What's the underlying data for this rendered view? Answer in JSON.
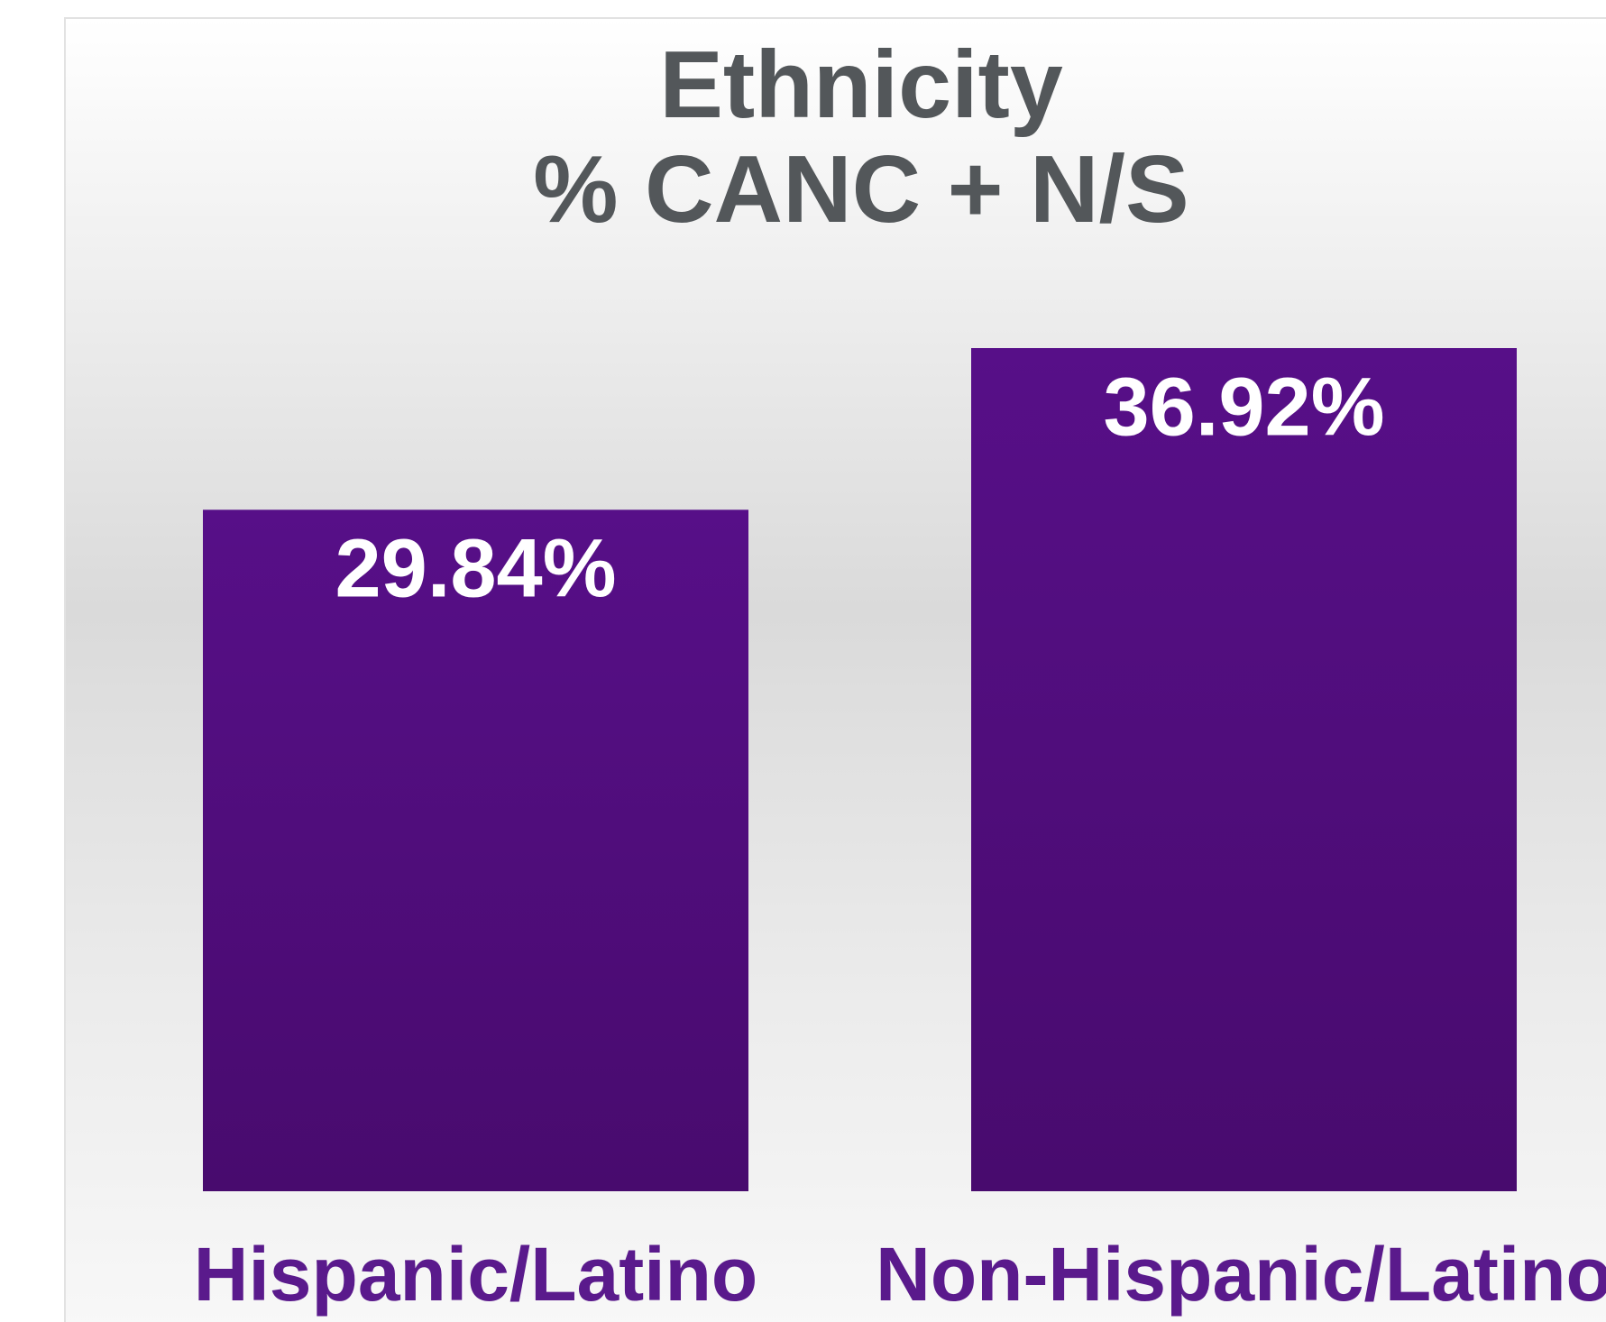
{
  "chart_data": {
    "type": "bar",
    "title": "Ethnicity",
    "subtitle": "% CANC + N/S",
    "categories": [
      "Hispanic/Latino",
      "Non-Hispanic/Latino"
    ],
    "values": [
      29.84,
      36.92
    ],
    "value_labels": [
      "29.84%",
      "36.92%"
    ],
    "color": "#52107f"
  }
}
